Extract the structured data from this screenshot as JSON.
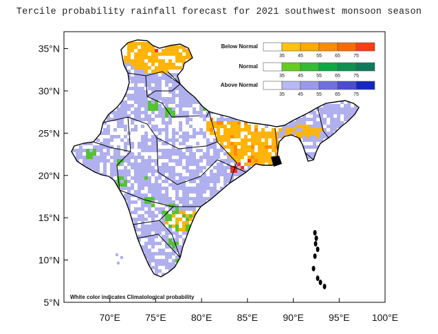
{
  "title": "Tercile probability rainfall forecast for 2021 southwest monsoon  season",
  "note": "White color indicates Climatological probability",
  "map": {
    "lon_range": [
      65,
      100
    ],
    "lat_range": [
      5,
      37
    ],
    "lat_ticks": [
      {
        "value": 35,
        "label": "35°N"
      },
      {
        "value": 30,
        "label": "30°N"
      },
      {
        "value": 25,
        "label": "25°N"
      },
      {
        "value": 20,
        "label": "20°N"
      },
      {
        "value": 15,
        "label": "15°N"
      },
      {
        "value": 10,
        "label": "10°N"
      },
      {
        "value": 5,
        "label": "5°N"
      }
    ],
    "lon_ticks": [
      {
        "value": 70,
        "label": "70°E"
      },
      {
        "value": 75,
        "label": "75°E"
      },
      {
        "value": 80,
        "label": "80°E"
      },
      {
        "value": 85,
        "label": "85°E"
      },
      {
        "value": 90,
        "label": "90°E"
      },
      {
        "value": 95,
        "label": "95°E"
      },
      {
        "value": 100,
        "label": "100°E"
      }
    ]
  },
  "legend": [
    {
      "title": "Below Normal",
      "ticks": [
        "35",
        "45",
        "55",
        "65",
        "75"
      ],
      "colors": [
        "#ffffff",
        "#ffc20e",
        "#ffaa00",
        "#ff8c00",
        "#ff6a00",
        "#ff3c14"
      ]
    },
    {
      "title": "Normal",
      "ticks": [
        "35",
        "45",
        "55",
        "65",
        "75"
      ],
      "colors": [
        "#ffffff",
        "#66cc22",
        "#33bb33",
        "#11a844",
        "#0f9050",
        "#0e7a5a"
      ]
    },
    {
      "title": "Above Normal",
      "ticks": [
        "35",
        "45",
        "55",
        "65",
        "75"
      ],
      "colors": [
        "#ffffff",
        "#b8b8f4",
        "#9a9ae8",
        "#7070dd",
        "#4b4bd0",
        "#1428c0"
      ]
    }
  ],
  "colors": {
    "above": "#b0b0ee",
    "below": "#ffb40a",
    "below_dark": "#ff8a00",
    "normal": "#55c233",
    "outline": "#000000"
  }
}
